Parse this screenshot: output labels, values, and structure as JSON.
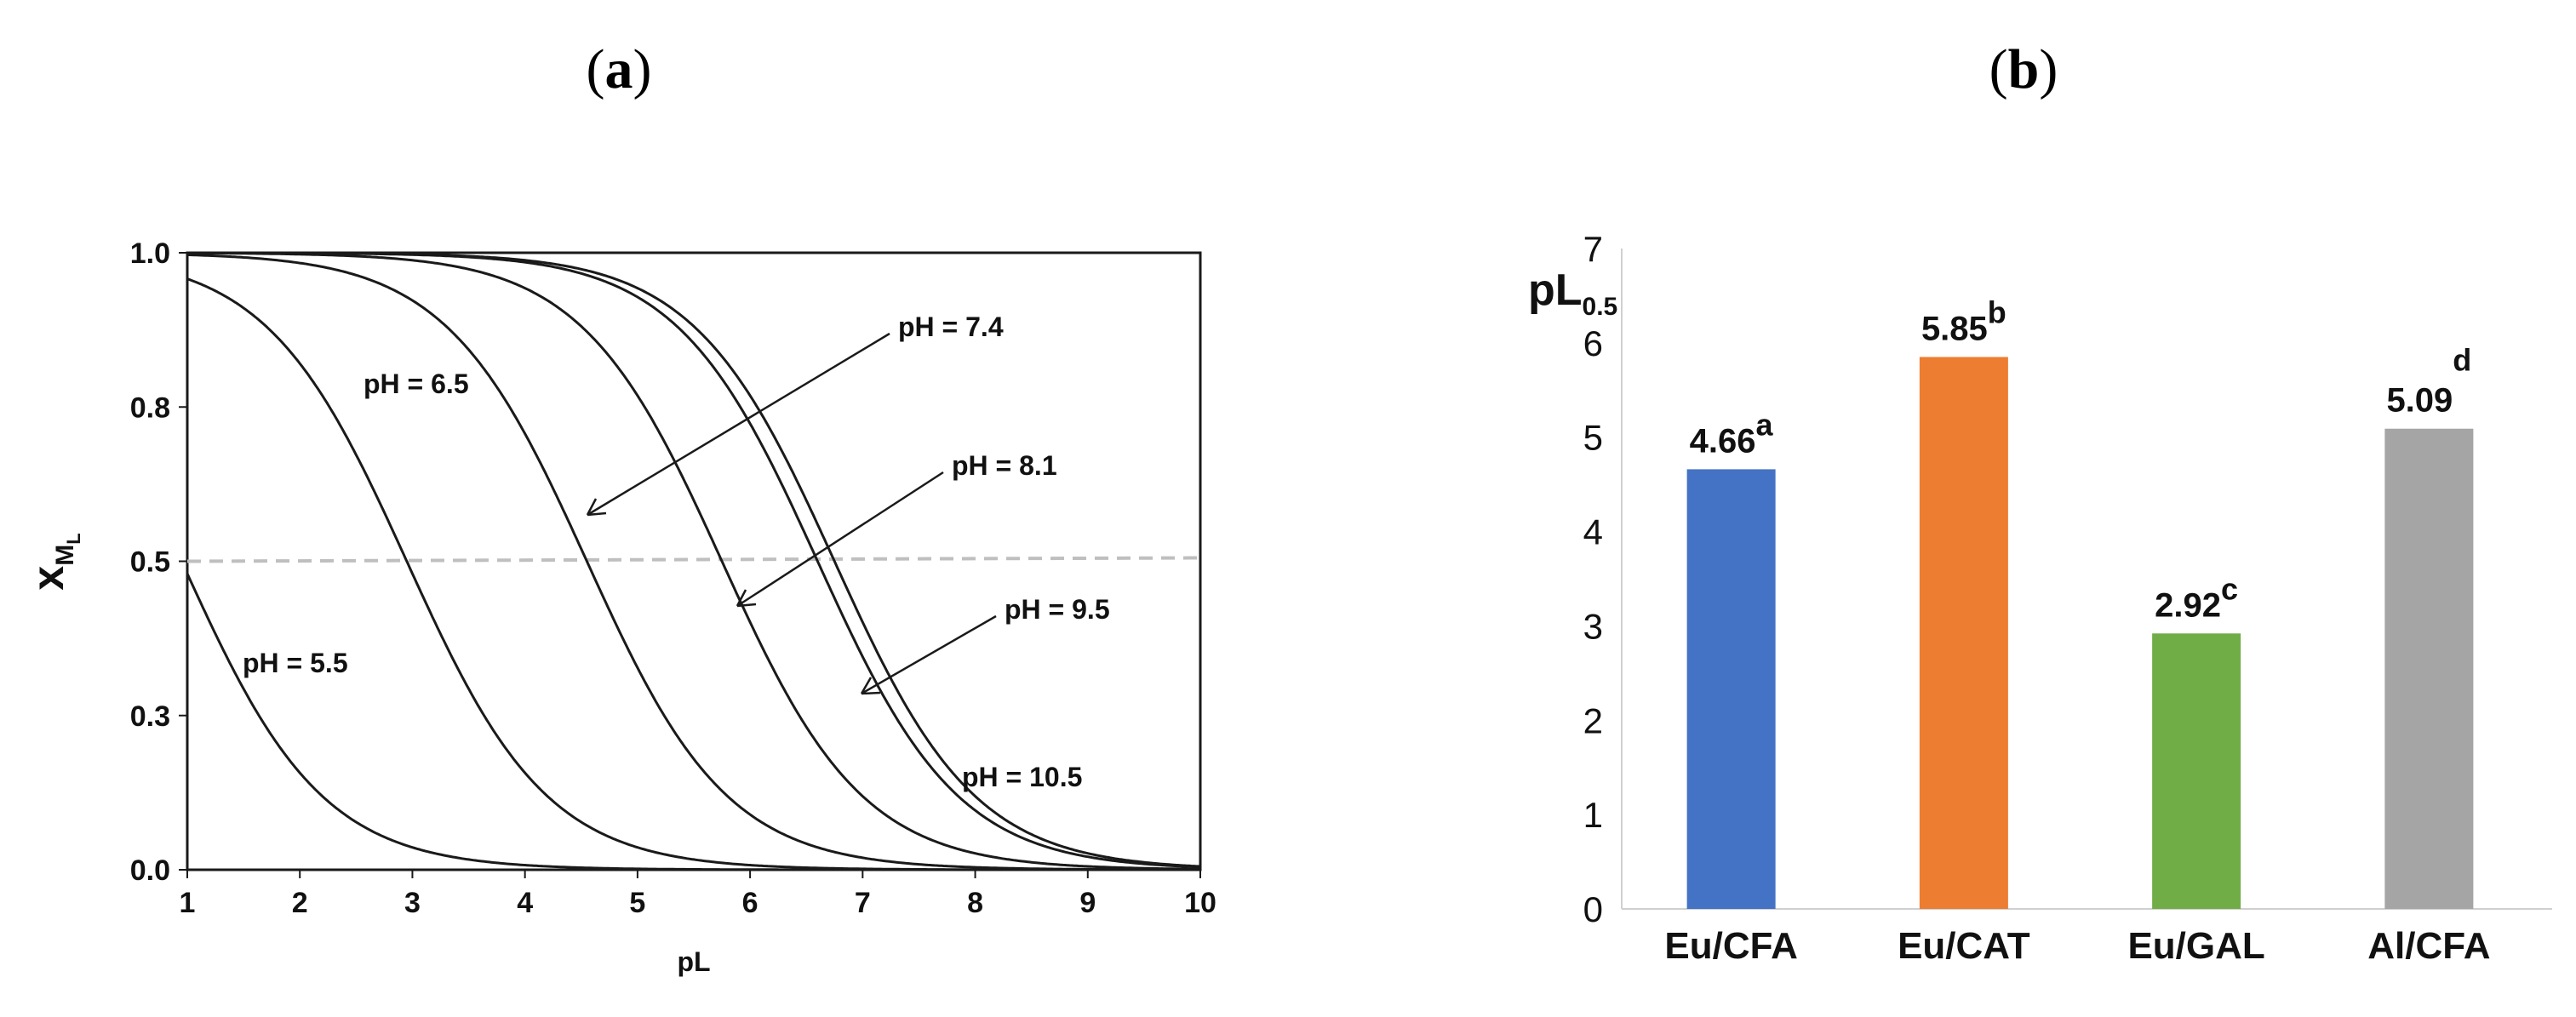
{
  "panel_a_label": "a",
  "panel_b_label": "b",
  "chart_data": [
    {
      "type": "line",
      "xlabel": "pL",
      "ylabel_main": "x",
      "ylabel_sub": "M",
      "ylabel_subsub": "L",
      "xlim": [
        1,
        10
      ],
      "ylim": [
        0,
        1
      ],
      "x_ticks": [
        "1",
        "2",
        "3",
        "4",
        "5",
        "6",
        "7",
        "8",
        "9",
        "10"
      ],
      "y_ticks": [
        "0.0",
        "0.3",
        "0.5",
        "0.8",
        "1.0"
      ],
      "y_tick_values": [
        0,
        0.25,
        0.5,
        0.75,
        1.0
      ],
      "reference_line": {
        "y": 0.5,
        "style": "dashed",
        "color": "#bfbfbf"
      },
      "series": [
        {
          "name": "pH = 5.5",
          "pL50": 0.95,
          "slope": 1.6
        },
        {
          "name": "pH = 6.5",
          "pL50": 2.95,
          "slope": 1.6
        },
        {
          "name": "pH = 7.4",
          "pL50": 4.55,
          "slope": 1.6
        },
        {
          "name": "pH = 8.1",
          "pL50": 5.75,
          "slope": 1.6
        },
        {
          "name": "pH = 9.5",
          "pL50": 6.6,
          "slope": 1.6
        },
        {
          "name": "pH = 10.5",
          "pL50": 6.75,
          "slope": 1.6
        }
      ],
      "annotations": [
        "pH = 5.5",
        "pH = 6.5",
        "pH = 7.4",
        "pH = 8.1",
        "pH = 9.5",
        "pH = 10.5"
      ],
      "line_color": "#1a1a1a"
    },
    {
      "type": "bar",
      "ylabel_main": "pL",
      "ylabel_sub": "0.5",
      "ylim": [
        0,
        7
      ],
      "y_ticks": [
        "0",
        "1",
        "2",
        "3",
        "4",
        "5",
        "6",
        "7"
      ],
      "categories": [
        "Eu/CFA",
        "Eu/CAT",
        "Eu/GAL",
        "Al/CFA"
      ],
      "values": [
        4.66,
        5.85,
        2.92,
        5.09
      ],
      "value_labels": [
        "4.66",
        "5.85",
        "2.92",
        "5.09"
      ],
      "superscripts": [
        "a",
        "b",
        "c",
        "d"
      ],
      "colors": [
        "#4472c4",
        "#ed7d31",
        "#70ad47",
        "#a5a5a5"
      ]
    }
  ]
}
